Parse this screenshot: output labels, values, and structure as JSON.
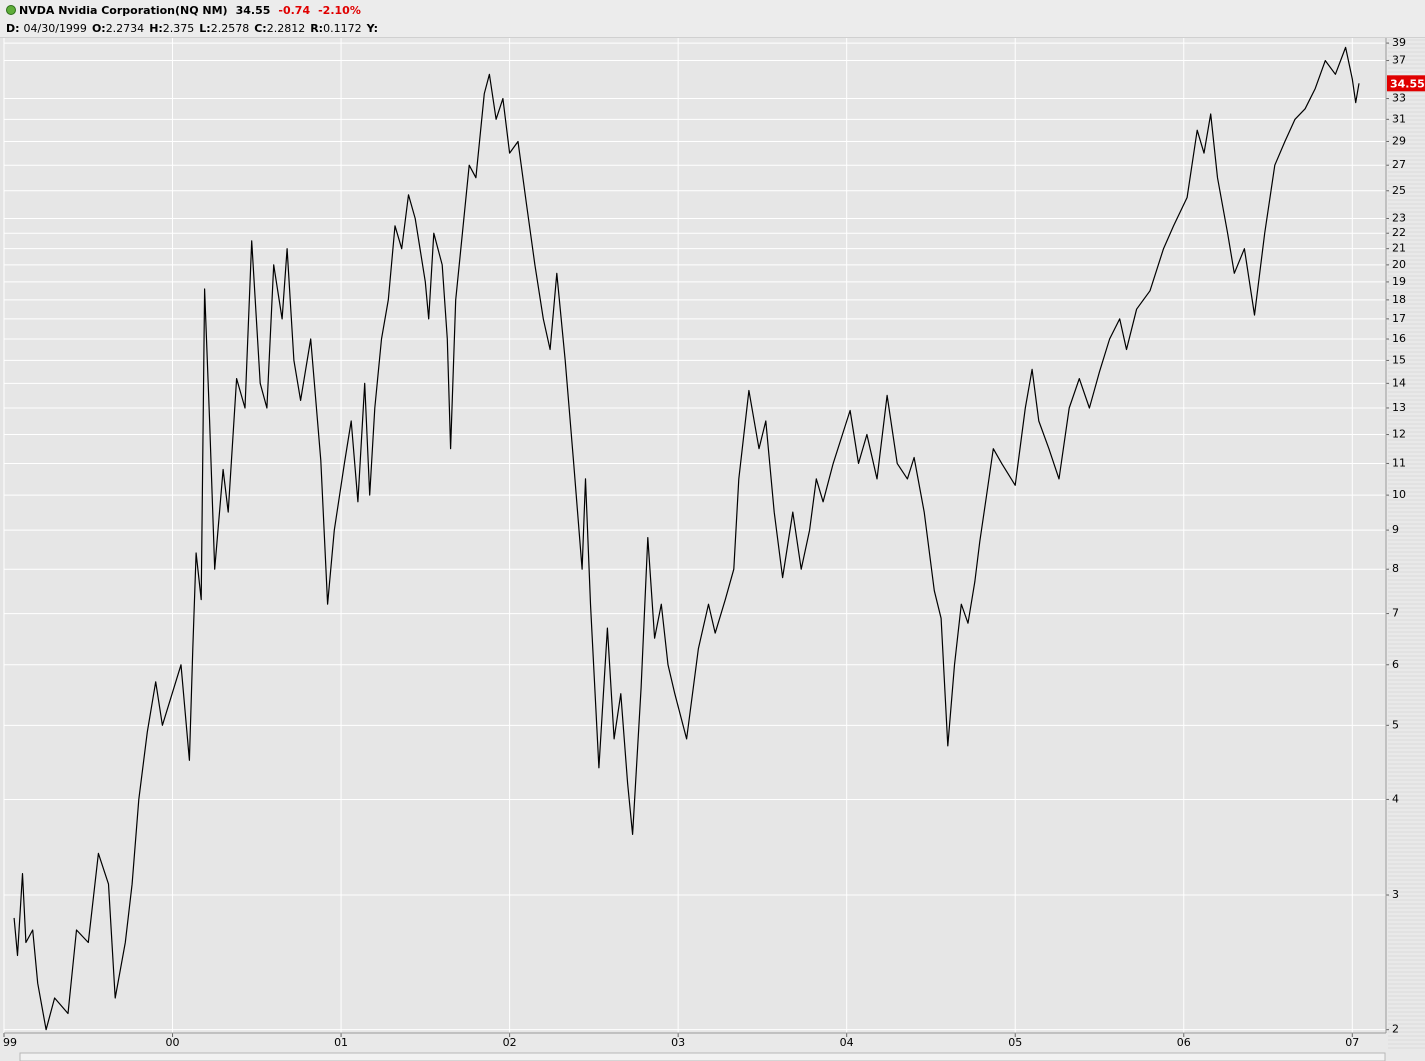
{
  "header": {
    "title": "NVDA Nvidia Corporation(NQ NM)",
    "change": -0.74,
    "change_pct": "-2.10%",
    "fields": [
      {
        "label": "D:",
        "value": "04/30/1999"
      },
      {
        "label": "O:",
        "value": 2.2734
      },
      {
        "label": "H:",
        "value": 2.375
      },
      {
        "label": "L:",
        "value": 2.2578
      },
      {
        "label": "C:",
        "value": 2.2812
      },
      {
        "label": "R:",
        "value": 0.1172
      },
      {
        "label": "Y:"
      }
    ]
  },
  "chart_data": {
    "type": "line",
    "last_value": 34.55,
    "color": "#000000",
    "last_color": "#e00000",
    "log_scale": true,
    "grid": true,
    "xlim": [
      1999.0,
      2007.2
    ],
    "xticks": [
      {
        "value": 1999,
        "label": "99"
      },
      {
        "value": 2000,
        "label": "00"
      },
      {
        "value": 2001,
        "label": "01"
      },
      {
        "value": 2002,
        "label": "02"
      },
      {
        "value": 2003,
        "label": "03"
      },
      {
        "value": 2004,
        "label": "04"
      },
      {
        "value": 2005,
        "label": "05"
      },
      {
        "value": 2006,
        "label": "06"
      },
      {
        "value": 2007,
        "label": "07"
      }
    ],
    "ylim": [
      1.98,
      39.6
    ],
    "yticks": [
      2,
      3,
      4,
      5,
      6,
      7,
      8,
      9,
      10,
      11,
      12,
      13,
      14,
      15,
      16,
      17,
      18,
      19,
      20,
      21,
      22,
      23,
      25,
      27,
      29,
      31,
      33,
      37,
      39
    ],
    "x": [
      1999.06,
      1999.08,
      1999.11,
      1999.13,
      1999.17,
      1999.2,
      1999.25,
      1999.3,
      1999.38,
      1999.43,
      1999.5,
      1999.56,
      1999.62,
      1999.66,
      1999.72,
      1999.76,
      1999.8,
      1999.85,
      1999.9,
      1999.94,
      2000.05,
      2000.1,
      2000.12,
      2000.14,
      2000.17,
      2000.19,
      2000.22,
      2000.25,
      2000.3,
      2000.33,
      2000.38,
      2000.43,
      2000.47,
      2000.52,
      2000.56,
      2000.6,
      2000.65,
      2000.68,
      2000.72,
      2000.76,
      2000.82,
      2000.88,
      2000.92,
      2000.96,
      2001.02,
      2001.06,
      2001.1,
      2001.14,
      2001.17,
      2001.2,
      2001.24,
      2001.28,
      2001.32,
      2001.36,
      2001.4,
      2001.44,
      2001.5,
      2001.52,
      2001.55,
      2001.6,
      2001.63,
      2001.65,
      2001.68,
      2001.72,
      2001.76,
      2001.8,
      2001.85,
      2001.88,
      2001.92,
      2001.96,
      2002.0,
      2002.05,
      2002.1,
      2002.15,
      2002.2,
      2002.24,
      2002.28,
      2002.33,
      2002.38,
      2002.43,
      2002.45,
      2002.48,
      2002.53,
      2002.58,
      2002.62,
      2002.66,
      2002.7,
      2002.73,
      2002.78,
      2002.82,
      2002.86,
      2002.9,
      2002.94,
      2002.98,
      2003.05,
      2003.12,
      2003.18,
      2003.22,
      2003.28,
      2003.33,
      2003.36,
      2003.42,
      2003.48,
      2003.52,
      2003.57,
      2003.62,
      2003.68,
      2003.73,
      2003.78,
      2003.82,
      2003.86,
      2003.92,
      2004.02,
      2004.07,
      2004.12,
      2004.18,
      2004.24,
      2004.3,
      2004.36,
      2004.4,
      2004.46,
      2004.52,
      2004.56,
      2004.6,
      2004.64,
      2004.68,
      2004.72,
      2004.76,
      2004.79,
      2004.83,
      2004.87,
      2004.92,
      2005.0,
      2005.06,
      2005.1,
      2005.14,
      2005.2,
      2005.26,
      2005.32,
      2005.38,
      2005.44,
      2005.5,
      2005.56,
      2005.62,
      2005.66,
      2005.72,
      2005.8,
      2005.88,
      2005.94,
      2006.02,
      2006.08,
      2006.12,
      2006.16,
      2006.2,
      2006.26,
      2006.3,
      2006.36,
      2006.42,
      2006.48,
      2006.54,
      2006.6,
      2006.66,
      2006.72,
      2006.78,
      2006.84,
      2006.9,
      2006.96,
      2007.0,
      2007.02,
      2007.04
    ],
    "values": [
      2.8,
      2.5,
      3.2,
      2.6,
      2.7,
      2.3,
      2.0,
      2.2,
      2.1,
      2.7,
      2.6,
      3.4,
      3.1,
      2.2,
      2.6,
      3.1,
      4.0,
      4.9,
      5.7,
      5.0,
      6.0,
      4.5,
      6.3,
      8.4,
      7.3,
      18.6,
      12.5,
      8.0,
      10.8,
      9.5,
      14.2,
      13.0,
      21.5,
      14.0,
      13.0,
      20.0,
      17.0,
      21.0,
      15.0,
      13.3,
      16.0,
      11.1,
      7.2,
      9.0,
      11.0,
      12.5,
      9.8,
      14.0,
      10.0,
      13.0,
      16.0,
      18.0,
      22.5,
      21.0,
      24.7,
      23.0,
      19.0,
      17.0,
      22.0,
      20.0,
      16.0,
      11.5,
      18.0,
      22.0,
      27.0,
      26.0,
      33.5,
      35.5,
      31.0,
      33.0,
      28.0,
      29.0,
      24.0,
      20.0,
      17.0,
      15.5,
      19.5,
      15.0,
      11.0,
      8.0,
      10.5,
      7.2,
      4.4,
      6.7,
      4.8,
      5.5,
      4.2,
      3.6,
      5.6,
      8.8,
      6.5,
      7.2,
      6.0,
      5.5,
      4.8,
      6.3,
      7.2,
      6.6,
      7.3,
      8.0,
      10.5,
      13.7,
      11.5,
      12.5,
      9.5,
      7.8,
      9.5,
      8.0,
      9.0,
      10.5,
      9.8,
      11.0,
      12.9,
      11.0,
      12.0,
      10.5,
      13.5,
      11.0,
      10.5,
      11.2,
      9.5,
      7.5,
      6.9,
      4.7,
      6.0,
      7.2,
      6.8,
      7.7,
      8.7,
      10.0,
      11.5,
      11.0,
      10.3,
      13.0,
      14.6,
      12.5,
      11.5,
      10.5,
      13.0,
      14.2,
      13.0,
      14.5,
      16.0,
      17.0,
      15.5,
      17.5,
      18.5,
      21.0,
      22.5,
      24.5,
      30.0,
      28.0,
      31.5,
      26.0,
      22.0,
      19.5,
      21.0,
      17.2,
      22.0,
      27.0,
      29.0,
      31.0,
      32.0,
      34.0,
      37.0,
      35.5,
      38.5,
      35.0,
      32.6,
      34.55
    ]
  }
}
